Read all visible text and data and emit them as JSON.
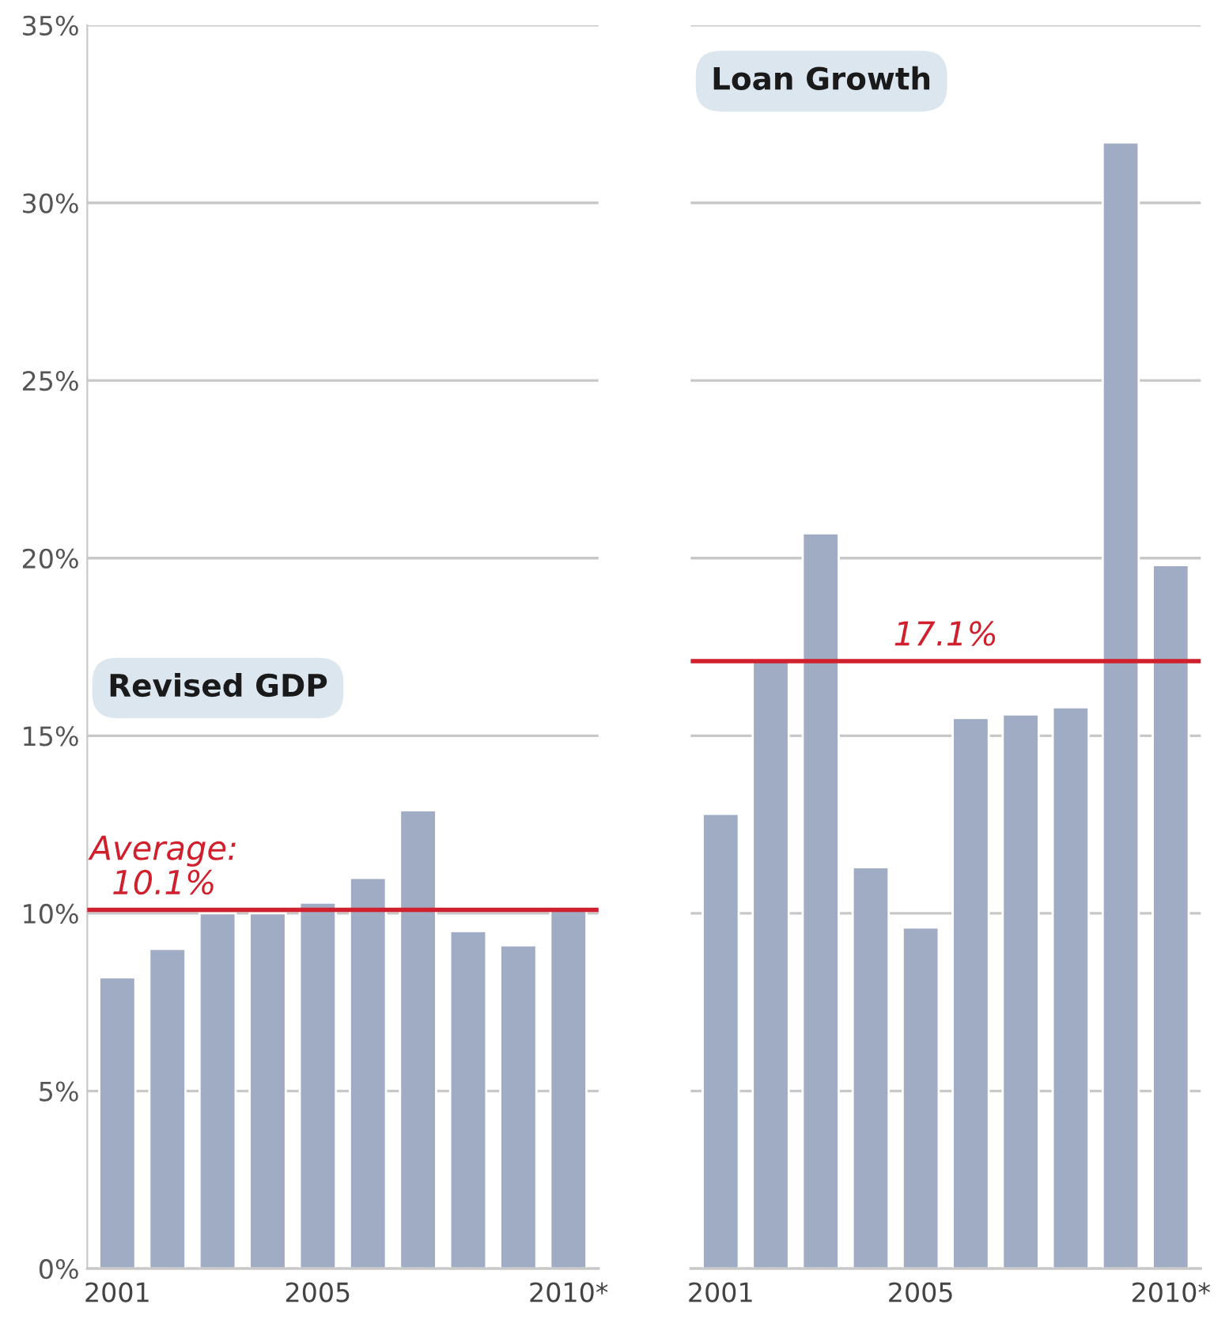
{
  "chart_data": [
    {
      "type": "bar",
      "title": "Revised GDP",
      "categories": [
        "2001",
        null,
        null,
        null,
        "2005",
        null,
        null,
        null,
        null,
        "2010*"
      ],
      "values": [
        8.2,
        9.0,
        10.0,
        10.0,
        10.3,
        11.0,
        12.9,
        9.5,
        9.1,
        10.1
      ],
      "color": "#a0abc4",
      "ylim": [
        0,
        35
      ],
      "yticks": [
        {
          "value": 0,
          "label": "0%"
        },
        {
          "value": 5,
          "label": "5%"
        },
        {
          "value": 10,
          "label": "10%"
        },
        {
          "value": 15,
          "label": "15%"
        },
        {
          "value": 20,
          "label": "20%"
        },
        {
          "value": 25,
          "label": "25%"
        },
        {
          "value": 30,
          "label": "30%"
        },
        {
          "value": 35,
          "label": "35%"
        }
      ],
      "grid": "y",
      "ref_lines": [
        {
          "axis": "y",
          "value": 10.1,
          "label": "Average:\n10.1%",
          "color": "#d0202e"
        }
      ]
    },
    {
      "type": "bar",
      "title": "Loan Growth",
      "categories": [
        "2001",
        null,
        null,
        null,
        "2005",
        null,
        null,
        null,
        null,
        "2010*"
      ],
      "values": [
        12.8,
        17.1,
        20.7,
        11.3,
        9.6,
        15.5,
        15.6,
        15.8,
        31.7,
        19.8
      ],
      "color": "#a0abc4",
      "ylim": [
        0,
        35
      ],
      "yticks": [
        {
          "value": 0,
          "label": null
        },
        {
          "value": 5,
          "label": null
        },
        {
          "value": 10,
          "label": null
        },
        {
          "value": 15,
          "label": null
        },
        {
          "value": 20,
          "label": null
        },
        {
          "value": 25,
          "label": null
        },
        {
          "value": 30,
          "label": null
        },
        {
          "value": 35,
          "label": null
        }
      ],
      "grid": "y",
      "tick_labels": "x",
      "ref_lines": [
        {
          "axis": "y",
          "value": 17.1,
          "label": "17.1%",
          "color": "#d0202e"
        }
      ]
    }
  ]
}
